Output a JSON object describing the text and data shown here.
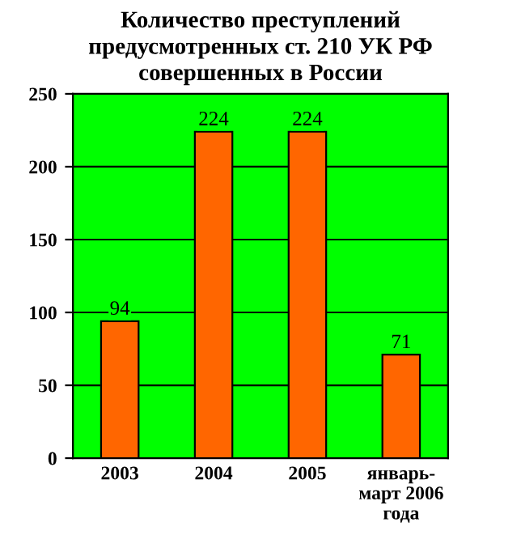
{
  "chart_data": {
    "type": "bar",
    "title": "Количество преступлений\nпредусмотренных ст. 210 УК РФ\nсовершенных в России",
    "categories": [
      "2003",
      "2004",
      "2005",
      "январь-\nмарт 2006\nгода"
    ],
    "values": [
      94,
      224,
      224,
      71
    ],
    "color": "#ff6600",
    "ylim": [
      0,
      250
    ],
    "yticks": [
      0,
      50,
      100,
      150,
      200,
      250
    ],
    "grid": "y",
    "data_labels": true,
    "legend": false
  }
}
